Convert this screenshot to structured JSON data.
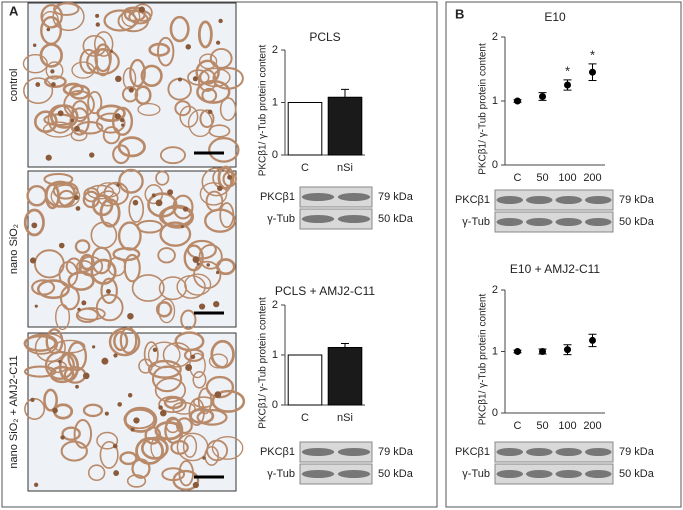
{
  "panels": [
    "A",
    "B"
  ],
  "micrographs": {
    "labels": [
      "control",
      "nano SiO₂",
      "nano SiO₂ + AMJ2-C11"
    ]
  },
  "blots": [
    {
      "rows": [
        {
          "name": "PKCβ1",
          "size": "79 kDa"
        },
        {
          "name": "γ-Tub",
          "size": "50 kDa"
        }
      ]
    },
    {
      "rows": [
        {
          "name": "PKCβ1",
          "size": "79 kDa"
        },
        {
          "name": "γ-Tub",
          "size": "50 kDa"
        }
      ]
    },
    {
      "rows": [
        {
          "name": "PKCβ1",
          "size": "79 kDa"
        },
        {
          "name": "γ-Tub",
          "size": "50 kDa"
        }
      ]
    },
    {
      "rows": [
        {
          "name": "PKCβ1",
          "size": "79 kDa"
        },
        {
          "name": "γ-Tub",
          "size": "50 kDa"
        }
      ]
    }
  ],
  "chart_data": [
    {
      "type": "bar",
      "title": "PCLS",
      "y_label": "PKCβ1/ γ-Tub protein content",
      "categories": [
        "C",
        "nSi"
      ],
      "values": [
        1,
        1.1
      ],
      "errors": [
        null,
        0.15
      ],
      "colors": [
        "#ffffff",
        "#1a1a1a"
      ],
      "ylim": [
        0,
        2
      ],
      "yticks": [
        0,
        1,
        2
      ]
    },
    {
      "type": "bar",
      "title": "PCLS + AMJ2-C11",
      "y_label": "PKCβ1/ γ-Tub protein content",
      "categories": [
        "C",
        "nSi"
      ],
      "values": [
        1,
        1.15
      ],
      "errors": [
        null,
        0.08
      ],
      "colors": [
        "#ffffff",
        "#1a1a1a"
      ],
      "ylim": [
        0,
        2
      ],
      "yticks": [
        0,
        1,
        2
      ]
    },
    {
      "type": "scatter",
      "title": "E10",
      "y_label": "PKCβ1/ γ-Tub protein content",
      "categories": [
        "C",
        "50",
        "100",
        "200"
      ],
      "values": [
        1,
        1.07,
        1.25,
        1.45
      ],
      "errors": [
        0.02,
        0.06,
        0.08,
        0.13
      ],
      "significance": [
        null,
        null,
        "*",
        "*"
      ],
      "color": "#000000",
      "ylim": [
        0,
        2
      ],
      "yticks": [
        0,
        1,
        2
      ]
    },
    {
      "type": "scatter",
      "title": "E10 + AMJ2-C11",
      "y_label": "PKCβ1/ γ-Tub protein content",
      "categories": [
        "C",
        "50",
        "100",
        "200"
      ],
      "values": [
        1,
        1.0,
        1.03,
        1.18
      ],
      "errors": [
        0.02,
        0.04,
        0.08,
        0.1
      ],
      "color": "#000000",
      "ylim": [
        0,
        2
      ],
      "yticks": [
        0,
        1,
        2
      ]
    }
  ]
}
